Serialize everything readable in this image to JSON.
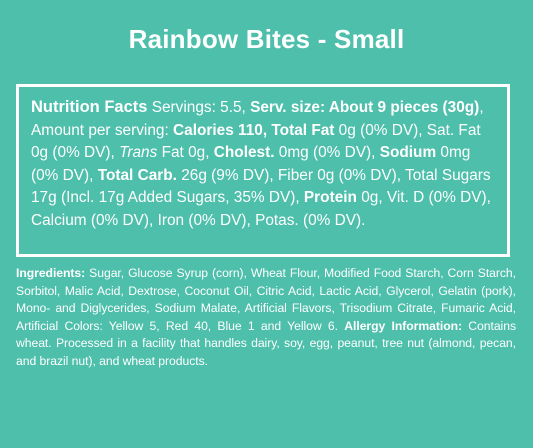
{
  "title": "Rainbow Bites - Small",
  "nutrition": {
    "heading": "Nutrition Facts",
    "servings": " Servings: 5.5, ",
    "serv_size_label": "Serv. size: About 9 pieces (30g)",
    "amount_per_serving": ", Amount per serving: ",
    "calories": "Calories 110, ",
    "total_fat_label": "Total Fat",
    "total_fat_value": " 0g (0% DV), Sat. Fat 0g (0% DV), ",
    "trans_label": "Trans",
    "trans_value": " Fat 0g, ",
    "cholest_label": "Cholest.",
    "cholest_value": " 0mg (0% DV), ",
    "sodium_label": "Sodium",
    "sodium_value": " 0mg (0% DV), ",
    "carb_label": "Total Carb.",
    "carb_value": " 26g (9% DV), Fiber 0g (0% DV), Total Sugars 17g (Incl. 17g Added Sugars, 35% DV), ",
    "protein_label": "Protein",
    "protein_value": " 0g, Vit. D (0% DV), Calcium (0% DV), Iron (0% DV), Potas. (0% DV)."
  },
  "ingredients": {
    "label": "Ingredients:",
    "text": " Sugar, Glucose Syrup (corn), Wheat Flour, Modified Food Starch, Corn Starch, Sorbitol, Malic Acid, Dextrose, Coconut Oil, Citric Acid, Lactic Acid, Glycerol, Gelatin (pork), Mono- and Diglycerides, Sodium Malate, Artificial Flavors, Trisodium Citrate, Fumaric Acid, Artificial Colors: Yellow 5, Red 40, Blue 1 and Yellow 6. ",
    "allergy_label": "Allergy Information:",
    "allergy_text": " Contains wheat. Processed in a facility that handles dairy, soy, egg, peanut, tree nut (almond, pecan, and brazil nut), and wheat products."
  }
}
